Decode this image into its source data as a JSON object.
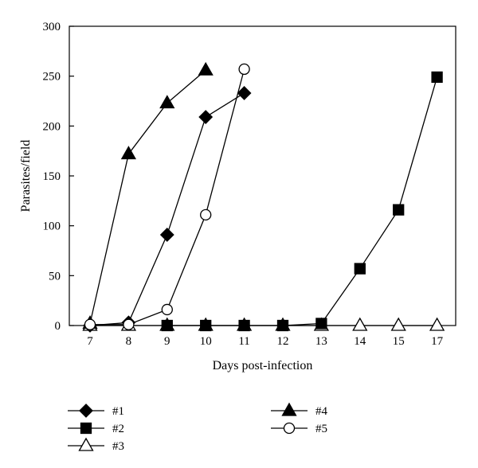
{
  "chart_data": {
    "type": "line",
    "xlabel": "Days post-infection",
    "ylabel": "Parasites/field",
    "categories": [
      "7",
      "8",
      "9",
      "10",
      "11",
      "12",
      "13",
      "14",
      "15",
      "17"
    ],
    "yticks": [
      "0",
      "50",
      "100",
      "150",
      "200",
      "250",
      "300"
    ],
    "ylim": [
      0,
      300
    ],
    "grid": false,
    "legend_position": "bottom",
    "series": [
      {
        "name": "#1",
        "marker": "diamond-filled",
        "points": [
          {
            "x": "7",
            "y": 0
          },
          {
            "x": "8",
            "y": 3
          },
          {
            "x": "9",
            "y": 91
          },
          {
            "x": "10",
            "y": 209
          },
          {
            "x": "11",
            "y": 233
          }
        ]
      },
      {
        "name": "#2",
        "marker": "square-filled",
        "points": [
          {
            "x": "9",
            "y": 0
          },
          {
            "x": "10",
            "y": 0
          },
          {
            "x": "11",
            "y": 0
          },
          {
            "x": "12",
            "y": 0
          },
          {
            "x": "13",
            "y": 2
          },
          {
            "x": "14",
            "y": 57
          },
          {
            "x": "15",
            "y": 116
          },
          {
            "x": "17",
            "y": 249
          }
        ]
      },
      {
        "name": "#3",
        "marker": "triangle-open",
        "points": [
          {
            "x": "7",
            "y": 0
          },
          {
            "x": "8",
            "y": 0
          },
          {
            "x": "9",
            "y": 0
          },
          {
            "x": "10",
            "y": 0
          },
          {
            "x": "11",
            "y": 0
          },
          {
            "x": "12",
            "y": 0
          },
          {
            "x": "13",
            "y": 0
          },
          {
            "x": "14",
            "y": 0
          },
          {
            "x": "15",
            "y": 0
          },
          {
            "x": "17",
            "y": 0
          }
        ]
      },
      {
        "name": "#4",
        "marker": "triangle-filled",
        "points": [
          {
            "x": "7",
            "y": 2
          },
          {
            "x": "8",
            "y": 172
          },
          {
            "x": "9",
            "y": 223
          },
          {
            "x": "10",
            "y": 256
          }
        ]
      },
      {
        "name": "#5",
        "marker": "circle-open",
        "points": [
          {
            "x": "7",
            "y": 1
          },
          {
            "x": "8",
            "y": 1
          },
          {
            "x": "9",
            "y": 16
          },
          {
            "x": "10",
            "y": 111
          },
          {
            "x": "11",
            "y": 257
          }
        ]
      }
    ]
  }
}
